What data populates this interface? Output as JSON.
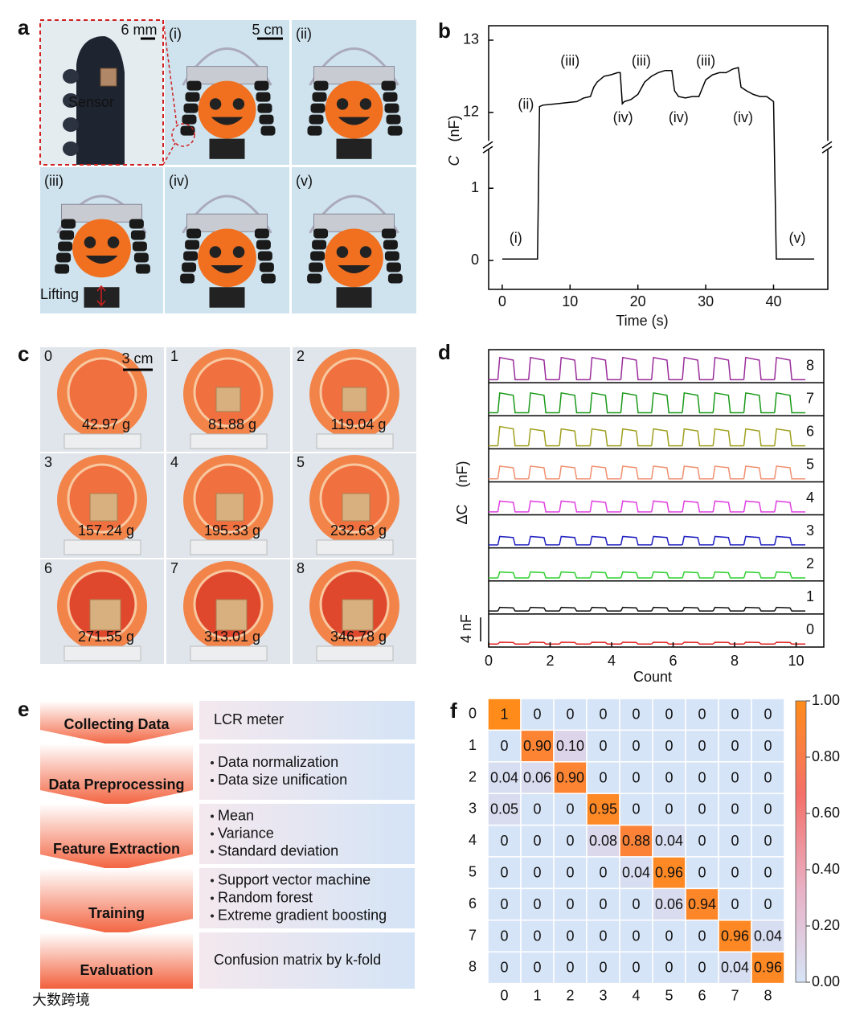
{
  "panel_a": {
    "label": "a",
    "inset_scale": "6 mm",
    "sensor_label": "Sensor",
    "photo_scale": "5 cm",
    "lifting_label": "Lifting",
    "stages": [
      "(i)",
      "(ii)",
      "(iii)",
      "(iv)",
      "(v)"
    ]
  },
  "panel_c": {
    "label": "c",
    "scale": "3 cm",
    "cells": [
      {
        "index": 0,
        "mass": "42.97 g"
      },
      {
        "index": 1,
        "mass": "81.88 g"
      },
      {
        "index": 2,
        "mass": "119.04 g"
      },
      {
        "index": 3,
        "mass": "157.24 g"
      },
      {
        "index": 4,
        "mass": "195.33 g"
      },
      {
        "index": 5,
        "mass": "232.63 g"
      },
      {
        "index": 6,
        "mass": "271.55 g"
      },
      {
        "index": 7,
        "mass": "313.01 g"
      },
      {
        "index": 8,
        "mass": "346.78 g"
      }
    ]
  },
  "panel_e": {
    "label": "e",
    "steps": [
      {
        "title": "Collecting Data",
        "items": [
          "LCR meter"
        ]
      },
      {
        "title": "Data Preprocessing",
        "items": [
          "Data normalization",
          "Data size unification"
        ]
      },
      {
        "title": "Feature Extraction",
        "items": [
          "Mean",
          "Variance",
          "Standard deviation"
        ]
      },
      {
        "title": "Training",
        "items": [
          "Support vector machine",
          "Random forest",
          "Extreme gradient boosting"
        ]
      },
      {
        "title": "Evaluation",
        "items": [
          "Confusion matrix by k-fold"
        ]
      }
    ]
  },
  "chart_data": [
    {
      "panel_label": "b",
      "type": "line",
      "xlabel": "Time (s)",
      "ylabel_symbol": "C",
      "ylabel_unit": "(nF)",
      "xlim": [
        -2,
        48
      ],
      "xticks": [
        0,
        10,
        20,
        30,
        40
      ],
      "ylim": [
        -0.4,
        13.2
      ],
      "yticks": [
        0,
        1,
        12,
        13
      ],
      "y_break": [
        1.6,
        11.55
      ],
      "color": "#000000",
      "x": [
        0,
        5.2,
        5.5,
        6,
        8,
        10,
        11,
        12,
        13,
        13.5,
        14,
        15,
        16,
        17,
        17.4,
        17.7,
        18,
        19,
        20,
        21,
        22,
        23,
        24,
        25,
        25.4,
        26,
        27,
        28,
        29,
        30,
        31,
        32,
        33,
        34,
        34.8,
        35.2,
        36,
        37,
        38,
        39,
        40,
        40.4,
        46
      ],
      "values": [
        0.02,
        0.02,
        12.08,
        12.1,
        12.12,
        12.14,
        12.15,
        12.2,
        12.22,
        12.35,
        12.42,
        12.5,
        12.52,
        12.55,
        12.55,
        12.12,
        12.15,
        12.18,
        12.25,
        12.42,
        12.5,
        12.55,
        12.58,
        12.58,
        12.3,
        12.22,
        12.2,
        12.22,
        12.22,
        12.45,
        12.52,
        12.55,
        12.55,
        12.6,
        12.62,
        12.35,
        12.3,
        12.25,
        12.22,
        12.22,
        12.15,
        0.02,
        0.02
      ],
      "annotations": [
        "(i)",
        "(ii)",
        "(iii)",
        "(iii)",
        "(iii)",
        "(iv)",
        "(iv)",
        "(iv)",
        "(v)"
      ]
    },
    {
      "panel_label": "d",
      "type": "pulses",
      "xlabel": "Count",
      "ylabel_symbol": "ΔC",
      "ylabel_unit": "(nF)",
      "xlim": [
        0,
        10.9
      ],
      "xticks": [
        0,
        2,
        4,
        6,
        8,
        10
      ],
      "ylim": [
        -0.5,
        5
      ],
      "scale_bar": {
        "value": 4,
        "label": "4 nF"
      },
      "x": [
        0.3,
        1.3,
        2.3,
        3.3,
        4.3,
        5.3,
        6.3,
        7.3,
        8.3,
        9.3
      ],
      "series": [
        {
          "name": "0",
          "color": "#e02020",
          "values": [
            0.3,
            0.3,
            0.3,
            0.3,
            0.3,
            0.3,
            0.3,
            0.3,
            0.3,
            0.3
          ]
        },
        {
          "name": "1",
          "color": "#111111",
          "values": [
            0.6,
            0.6,
            0.6,
            0.6,
            0.6,
            0.6,
            0.6,
            0.6,
            0.6,
            0.6
          ]
        },
        {
          "name": "2",
          "color": "#30d030",
          "values": [
            1.0,
            1.0,
            1.0,
            1.0,
            1.0,
            1.0,
            1.0,
            1.0,
            1.0,
            1.0
          ]
        },
        {
          "name": "3",
          "color": "#2020c0",
          "values": [
            1.4,
            1.4,
            1.4,
            1.4,
            1.4,
            1.4,
            1.4,
            1.4,
            1.4,
            1.4
          ]
        },
        {
          "name": "4",
          "color": "#e040e0",
          "values": [
            1.8,
            1.8,
            1.8,
            1.8,
            1.8,
            1.8,
            1.8,
            1.8,
            1.8,
            1.8
          ]
        },
        {
          "name": "5",
          "color": "#f09070",
          "values": [
            2.1,
            2.1,
            2.1,
            2.1,
            2.1,
            2.1,
            2.1,
            2.1,
            2.1,
            2.1
          ]
        },
        {
          "name": "6",
          "color": "#a0a020",
          "values": [
            3.2,
            2.8,
            2.8,
            2.8,
            2.8,
            2.8,
            2.8,
            2.8,
            2.8,
            2.8
          ]
        },
        {
          "name": "7",
          "color": "#1a9a1a",
          "values": [
            3.3,
            3.3,
            3.3,
            3.3,
            3.3,
            3.3,
            3.3,
            3.3,
            3.3,
            3.3
          ]
        },
        {
          "name": "8",
          "color": "#9b2d9b",
          "values": [
            3.7,
            3.7,
            3.7,
            3.7,
            3.7,
            3.7,
            3.7,
            3.7,
            3.7,
            3.7
          ]
        }
      ]
    },
    {
      "panel_label": "f",
      "type": "heatmap",
      "categories": [
        0,
        1,
        2,
        3,
        4,
        5,
        6,
        7,
        8
      ],
      "clim": [
        0,
        1
      ],
      "colorscale": [
        "#d6e4f7",
        "#e9b0c4",
        "#f4706a",
        "#ff8c1a"
      ],
      "colorbar_ticks": [
        {
          "value": 0,
          "label": "0.00"
        },
        {
          "value": 0.2,
          "label": "0.20"
        },
        {
          "value": 0.4,
          "label": "0.40"
        },
        {
          "value": 0.6,
          "label": "0.60"
        },
        {
          "value": 0.8,
          "label": "0.80"
        },
        {
          "value": 1,
          "label": "1.00"
        }
      ],
      "values": [
        [
          1,
          0,
          0,
          0,
          0,
          0,
          0,
          0,
          0
        ],
        [
          0,
          0.9,
          0.1,
          0,
          0,
          0,
          0,
          0,
          0
        ],
        [
          0.04,
          0.06,
          0.9,
          0,
          0,
          0,
          0,
          0,
          0
        ],
        [
          0.05,
          0,
          0,
          0.95,
          0,
          0,
          0,
          0,
          0
        ],
        [
          0,
          0,
          0,
          0.08,
          0.88,
          0.04,
          0,
          0,
          0
        ],
        [
          0,
          0,
          0,
          0,
          0.04,
          0.96,
          0,
          0,
          0
        ],
        [
          0,
          0,
          0,
          0,
          0,
          0.06,
          0.94,
          0,
          0
        ],
        [
          0,
          0,
          0,
          0,
          0,
          0,
          0,
          0.96,
          0.04
        ],
        [
          0,
          0,
          0,
          0,
          0,
          0,
          0,
          0.04,
          0.96
        ]
      ],
      "value_labels": [
        [
          "1",
          "0",
          "0",
          "0",
          "0",
          "0",
          "0",
          "0",
          "0"
        ],
        [
          "0",
          "0.90",
          "0.10",
          "0",
          "0",
          "0",
          "0",
          "0",
          "0"
        ],
        [
          "0.04",
          "0.06",
          "0.90",
          "0",
          "0",
          "0",
          "0",
          "0",
          "0"
        ],
        [
          "0.05",
          "0",
          "0",
          "0.95",
          "0",
          "0",
          "0",
          "0",
          "0"
        ],
        [
          "0",
          "0",
          "0",
          "0.08",
          "0.88",
          "0.04",
          "0",
          "0",
          "0"
        ],
        [
          "0",
          "0",
          "0",
          "0",
          "0.04",
          "0.96",
          "0",
          "0",
          "0"
        ],
        [
          "0",
          "0",
          "0",
          "0",
          "0",
          "0.06",
          "0.94",
          "0",
          "0"
        ],
        [
          "0",
          "0",
          "0",
          "0",
          "0",
          "0",
          "0",
          "0.96",
          "0.04"
        ],
        [
          "0",
          "0",
          "0",
          "0",
          "0",
          "0",
          "0",
          "0.04",
          "0.96"
        ]
      ]
    }
  ],
  "watermark": "大数跨境"
}
